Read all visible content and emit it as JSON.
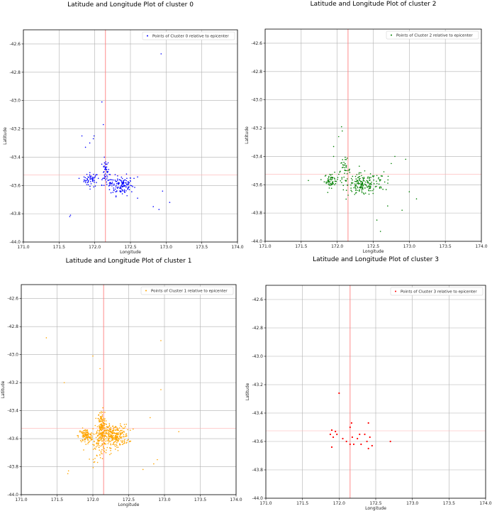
{
  "chart_data": [
    {
      "type": "scatter",
      "title": "Latitude and Longitude Plot of cluster 0",
      "xlabel": "Longitude",
      "ylabel": "Latitude",
      "xlim": [
        171.0,
        174.0
      ],
      "ylim": [
        -44.0,
        -42.5
      ],
      "xticks": [
        "171.0",
        "171.5",
        "172.0",
        "172.5",
        "173.0",
        "173.5",
        "174.0"
      ],
      "yticks": [
        "-42.6",
        "-42.8",
        "-43.0",
        "-43.2",
        "-43.4",
        "-43.6",
        "-43.8",
        "-44.0"
      ],
      "grid": true,
      "legend": "top-right",
      "epicenter": {
        "x": 172.15,
        "y": -43.525
      },
      "series": [
        {
          "name": "Points of Cluster 0 relative to epicenter",
          "color": "#0000ff",
          "points": [
            [
              171.65,
              -43.82
            ],
            [
              171.66,
              -43.81
            ],
            [
              171.82,
              -43.25
            ],
            [
              171.98,
              -43.27
            ],
            [
              171.99,
              -43.25
            ],
            [
              171.93,
              -43.3
            ],
            [
              171.87,
              -43.33
            ],
            [
              172.1,
              -43.01
            ],
            [
              172.12,
              -43.17
            ],
            [
              172.93,
              -42.67
            ],
            [
              172.95,
              -43.64
            ],
            [
              173.05,
              -43.72
            ],
            [
              172.9,
              -43.77
            ],
            [
              172.82,
              -43.75
            ],
            [
              172.6,
              -43.69
            ],
            [
              171.85,
              -43.54
            ],
            [
              171.78,
              -43.55
            ],
            [
              171.9,
              -43.56
            ],
            [
              172.05,
              -43.55
            ],
            [
              172.1,
              -43.6
            ],
            [
              172.15,
              -43.47
            ],
            [
              172.16,
              -43.45
            ],
            [
              172.17,
              -43.5
            ],
            [
              172.3,
              -43.6
            ],
            [
              172.35,
              -43.62
            ],
            [
              172.4,
              -43.58
            ],
            [
              172.45,
              -43.55
            ],
            [
              172.5,
              -43.6
            ],
            [
              172.55,
              -43.55
            ],
            [
              172.6,
              -43.54
            ]
          ]
        }
      ]
    },
    {
      "type": "scatter",
      "title": "Latitude and Longitude Plot of cluster 2",
      "xlabel": "Longitude",
      "ylabel": "Latitude",
      "xlim": [
        171.0,
        174.0
      ],
      "ylim": [
        -44.0,
        -42.5
      ],
      "xticks": [
        "171.0",
        "171.5",
        "172.0",
        "172.5",
        "173.0",
        "173.5",
        "174.0"
      ],
      "yticks": [
        "-42.6",
        "-42.8",
        "-43.0",
        "-43.2",
        "-43.4",
        "-43.6",
        "-43.8",
        "-44.0"
      ],
      "grid": true,
      "legend": "top-right",
      "epicenter": {
        "x": 172.15,
        "y": -43.525
      },
      "series": [
        {
          "name": "Points of Cluster 2 relative to epicenter",
          "color": "#008000",
          "points": [
            [
              171.95,
              -43.33
            ],
            [
              172.02,
              -43.26
            ],
            [
              172.06,
              -43.19
            ],
            [
              172.07,
              -43.22
            ],
            [
              171.95,
              -43.4
            ],
            [
              171.6,
              -43.57
            ],
            [
              172.6,
              -43.93
            ],
            [
              172.7,
              -43.75
            ],
            [
              172.9,
              -43.78
            ],
            [
              173.1,
              -43.7
            ],
            [
              173.0,
              -43.65
            ],
            [
              172.95,
              -43.42
            ],
            [
              172.8,
              -43.4
            ],
            [
              172.75,
              -43.45
            ],
            [
              172.55,
              -43.85
            ]
          ]
        }
      ]
    },
    {
      "type": "scatter",
      "title": "Latitude and Longitude Plot of cluster 1",
      "xlabel": "Longitude",
      "ylabel": "Latitude",
      "xlim": [
        171.0,
        174.0
      ],
      "ylim": [
        -44.0,
        -42.5
      ],
      "xticks": [
        "171.0",
        "171.5",
        "172.0",
        "172.5",
        "173.0",
        "173.5",
        "174.0"
      ],
      "yticks": [
        "-42.6",
        "-42.8",
        "-43.0",
        "-43.2",
        "-43.4",
        "-43.6",
        "-43.8",
        "-44.0"
      ],
      "grid": true,
      "legend": "top-right",
      "epicenter": {
        "x": 172.15,
        "y": -43.525
      },
      "series": [
        {
          "name": "Points of Cluster 1 relative to epicenter",
          "color": "#ffa500",
          "points": [
            [
              171.35,
              -42.88
            ],
            [
              171.6,
              -43.2
            ],
            [
              171.65,
              -43.85
            ],
            [
              171.66,
              -43.83
            ],
            [
              172.0,
              -43.01
            ],
            [
              172.1,
              -43.1
            ],
            [
              172.95,
              -42.9
            ],
            [
              172.95,
              -43.25
            ],
            [
              172.9,
              -43.75
            ],
            [
              172.85,
              -43.78
            ],
            [
              173.2,
              -43.55
            ],
            [
              172.8,
              -43.45
            ],
            [
              172.7,
              -43.82
            ]
          ]
        }
      ]
    },
    {
      "type": "scatter",
      "title": "Latitude and Longitude Plot of cluster 3",
      "xlabel": "Longitude",
      "ylabel": "Latitude",
      "xlim": [
        171.0,
        174.0
      ],
      "ylim": [
        -44.0,
        -42.5
      ],
      "xticks": [
        "171.0",
        "171.5",
        "172.0",
        "172.5",
        "173.0",
        "173.5",
        "174.0"
      ],
      "yticks": [
        "-42.6",
        "-42.8",
        "-43.0",
        "-43.2",
        "-43.4",
        "-43.6",
        "-43.8",
        "-44.0"
      ],
      "grid": true,
      "legend": "top-right",
      "epicenter": {
        "x": 172.15,
        "y": -43.525
      },
      "series": [
        {
          "name": "Points of Cluster 3 relative to epicenter",
          "color": "#ff0000",
          "points": [
            [
              171.88,
              -43.55
            ],
            [
              171.9,
              -43.52
            ],
            [
              171.92,
              -43.57
            ],
            [
              171.95,
              -43.53
            ],
            [
              171.97,
              -43.55
            ],
            [
              172.0,
              -43.26
            ],
            [
              171.9,
              -43.64
            ],
            [
              172.1,
              -43.6
            ],
            [
              172.15,
              -43.5
            ],
            [
              172.17,
              -43.47
            ],
            [
              172.18,
              -43.57
            ],
            [
              172.2,
              -43.62
            ],
            [
              172.25,
              -43.58
            ],
            [
              172.3,
              -43.62
            ],
            [
              172.35,
              -43.55
            ],
            [
              172.38,
              -43.6
            ],
            [
              172.4,
              -43.65
            ],
            [
              172.42,
              -43.57
            ],
            [
              172.45,
              -43.63
            ],
            [
              172.4,
              -43.47
            ],
            [
              172.7,
              -43.6
            ],
            [
              172.15,
              -43.62
            ],
            [
              172.28,
              -43.55
            ],
            [
              172.05,
              -43.58
            ]
          ]
        }
      ]
    }
  ]
}
